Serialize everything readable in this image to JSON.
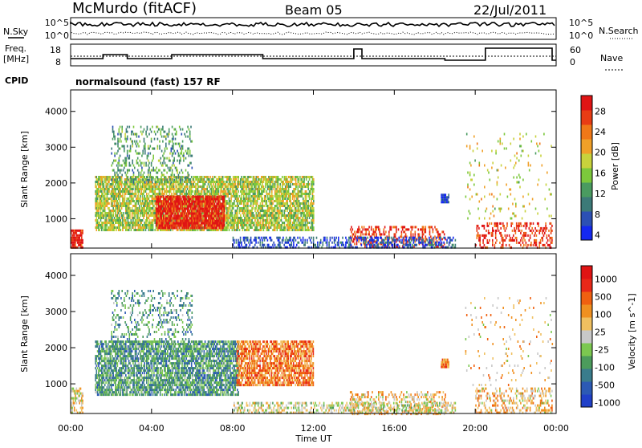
{
  "header": {
    "station": "McMurdo (fitACF)",
    "beam": "Beam 05",
    "date": "22/Jul/2011"
  },
  "top_strip": {
    "nsky_label": "N.Sky",
    "nsky_ticks": [
      "10^5",
      "10^0"
    ],
    "nsearch_label": "N.Search",
    "nsearch_ticks": [
      "10^5",
      "10^0"
    ],
    "freq_label": "Freq.",
    "freq_unit": "[MHz]",
    "freq_ticks": [
      "18",
      "8"
    ],
    "nave_label": "Nave",
    "nave_ticks": [
      "60",
      "0"
    ],
    "cpid_label": "CPID",
    "cpid_value": "normalsound (fast) 157 RF"
  },
  "x_axis": {
    "label": "Time UT",
    "ticks": [
      "00:00",
      "04:00",
      "08:00",
      "12:00",
      "16:00",
      "20:00",
      "00:00"
    ]
  },
  "chart_data": [
    {
      "type": "heatmap",
      "title": "",
      "xlabel": "Time UT",
      "ylabel": "Slant Range [km]",
      "xlim_hours": [
        0,
        24
      ],
      "ylim_km": [
        180,
        4600
      ],
      "yticks": [
        1000,
        2000,
        3000,
        4000
      ],
      "colorbar": {
        "label": "Power [dB]",
        "ticks": [
          "28",
          "24",
          "20",
          "16",
          "12",
          "8",
          "4"
        ],
        "tick_values": [
          28,
          24,
          20,
          16,
          12,
          8,
          4
        ],
        "range": [
          0,
          30
        ],
        "colors": [
          "#1428f0",
          "#2c50b4",
          "#3c7a78",
          "#4a9b60",
          "#7cc83c",
          "#c8d23c",
          "#f0a028",
          "#f07818",
          "#e83c14",
          "#e01414"
        ]
      },
      "regions": [
        {
          "t0": 1.2,
          "t1": 12.0,
          "r0": 700,
          "r1": 2200,
          "level": 0.5,
          "density": 0.75
        },
        {
          "t0": 4.2,
          "t1": 7.6,
          "r0": 750,
          "r1": 1650,
          "level": 0.92,
          "density": 0.85
        },
        {
          "t0": 2.0,
          "t1": 6.0,
          "r0": 2000,
          "r1": 3600,
          "level": 0.35,
          "density": 0.25
        },
        {
          "t0": 18.3,
          "t1": 18.7,
          "r0": 1450,
          "r1": 1700,
          "level": 0.1,
          "density": 0.9
        },
        {
          "t0": 0.0,
          "t1": 0.6,
          "r0": 200,
          "r1": 700,
          "level": 0.95,
          "density": 0.8
        },
        {
          "t0": 13.8,
          "t1": 18.5,
          "r0": 200,
          "r1": 800,
          "level": 0.88,
          "density": 0.35
        },
        {
          "t0": 20.0,
          "t1": 23.8,
          "r0": 200,
          "r1": 900,
          "level": 0.9,
          "density": 0.35
        },
        {
          "t0": 8.0,
          "t1": 19.0,
          "r0": 200,
          "r1": 500,
          "level": 0.15,
          "density": 0.45
        },
        {
          "t0": 19.5,
          "t1": 23.8,
          "r0": 1000,
          "r1": 3400,
          "level": 0.55,
          "density": 0.05
        }
      ]
    },
    {
      "type": "heatmap",
      "title": "",
      "xlabel": "Time UT",
      "ylabel": "Slant Range [km]",
      "xlim_hours": [
        0,
        24
      ],
      "ylim_km": [
        180,
        4600
      ],
      "yticks": [
        1000,
        2000,
        3000,
        4000
      ],
      "colorbar": {
        "label": "Velocity [m s^-1]",
        "ticks": [
          "1000",
          "500",
          "100",
          "25",
          "-25",
          "-100",
          "-500",
          "-1000"
        ],
        "tick_values": [
          1000,
          500,
          100,
          25,
          -25,
          -100,
          -500,
          -1000
        ],
        "colors": [
          "#2040c8",
          "#2c5ab4",
          "#3a7c8c",
          "#4c9c5c",
          "#7cc850",
          "#c8c8c8",
          "#f0c060",
          "#f09020",
          "#f06010",
          "#e82818",
          "#e01414"
        ]
      },
      "regions": [
        {
          "t0": 1.2,
          "t1": 8.3,
          "r0": 700,
          "r1": 2200,
          "level": 0.3,
          "density": 0.75
        },
        {
          "t0": 8.2,
          "t1": 12.0,
          "r0": 1000,
          "r1": 2200,
          "level": 0.72,
          "density": 0.75
        },
        {
          "t0": 2.0,
          "t1": 6.0,
          "r0": 2000,
          "r1": 3600,
          "level": 0.3,
          "density": 0.25
        },
        {
          "t0": 18.3,
          "t1": 18.7,
          "r0": 1450,
          "r1": 1700,
          "level": 0.72,
          "density": 0.9
        },
        {
          "t0": 0.0,
          "t1": 0.6,
          "r0": 200,
          "r1": 900,
          "level": 0.55,
          "density": 0.6
        },
        {
          "t0": 13.8,
          "t1": 18.5,
          "r0": 200,
          "r1": 800,
          "level": 0.6,
          "density": 0.35
        },
        {
          "t0": 20.0,
          "t1": 23.8,
          "r0": 200,
          "r1": 900,
          "level": 0.6,
          "density": 0.35
        },
        {
          "t0": 8.0,
          "t1": 19.0,
          "r0": 200,
          "r1": 500,
          "level": 0.5,
          "density": 0.45
        },
        {
          "t0": 19.5,
          "t1": 23.8,
          "r0": 1000,
          "r1": 3400,
          "level": 0.6,
          "density": 0.05
        }
      ]
    }
  ]
}
